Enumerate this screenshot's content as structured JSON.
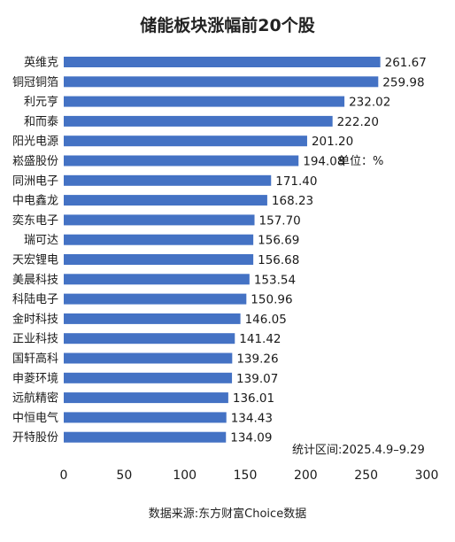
{
  "chart_data": {
    "type": "bar",
    "orientation": "horizontal",
    "title": "储能板块涨幅前20个股",
    "unit_note": "单位：%",
    "period_note": "统计区间:2025.4.9–9.29",
    "source": "数据来源:东方财富Choice数据",
    "bar_color": "#4472c4",
    "xlim": [
      0,
      300
    ],
    "xticks": [
      "0",
      "50",
      "100",
      "150",
      "200",
      "250",
      "300"
    ],
    "grid": false,
    "categories": [
      "英维克",
      "铜冠铜箔",
      "利元亨",
      "和而泰",
      "阳光电源",
      "崧盛股份",
      "同洲电子",
      "中电鑫龙",
      "奕东电子",
      "瑞可达",
      "天宏锂电",
      "美晨科技",
      "科陆电子",
      "金时科技",
      "正业科技",
      "国轩高科",
      "申菱环境",
      "远航精密",
      "中恒电气",
      "开特股份"
    ],
    "values": [
      261.67,
      259.98,
      232.02,
      222.2,
      201.2,
      194.08,
      171.4,
      168.23,
      157.7,
      156.69,
      156.68,
      153.54,
      150.96,
      146.05,
      141.42,
      139.26,
      139.07,
      136.01,
      134.43,
      134.09
    ],
    "value_labels": [
      "261.67",
      "259.98",
      "232.02",
      "222.20",
      "201.20",
      "194.08",
      "171.40",
      "168.23",
      "157.70",
      "156.69",
      "156.68",
      "153.54",
      "150.96",
      "146.05",
      "141.42",
      "139.26",
      "139.07",
      "136.01",
      "134.43",
      "134.09"
    ]
  }
}
